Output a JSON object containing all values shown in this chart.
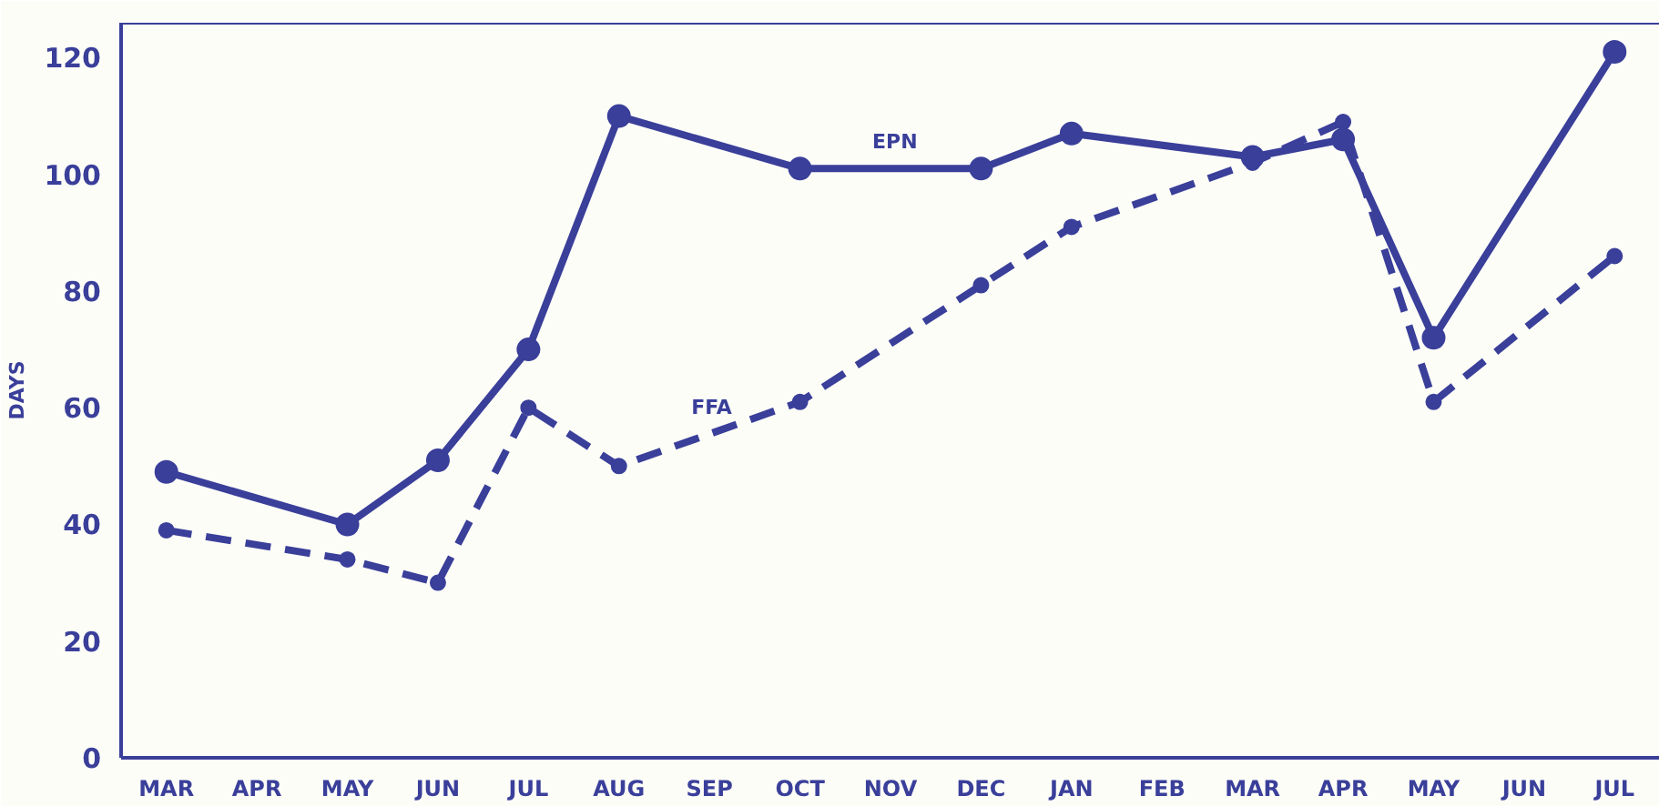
{
  "chart_data": {
    "type": "line",
    "ylabel": "DAYS",
    "categories": [
      "MAR",
      "APR",
      "MAY",
      "JUN",
      "JUL",
      "AUG",
      "SEP",
      "OCT",
      "NOV",
      "DEC",
      "JAN",
      "FEB",
      "MAR",
      "APR",
      "MAY",
      "JUN",
      "JUL"
    ],
    "ylim": [
      0,
      126
    ],
    "yticks": [
      0,
      20,
      40,
      60,
      80,
      100,
      120
    ],
    "marker": "circle",
    "series": [
      {
        "name": "EPN",
        "color": "#3a3f9a",
        "line_style": "solid",
        "values": [
          49,
          null,
          40,
          51,
          70,
          110,
          null,
          101,
          null,
          101,
          107,
          null,
          103,
          106,
          72,
          null,
          121
        ]
      },
      {
        "name": "FFA",
        "color": "#3a3f9a",
        "line_style": "dashed",
        "values": [
          39,
          null,
          34,
          30,
          60,
          50,
          null,
          61,
          null,
          81,
          91,
          null,
          102,
          109,
          61,
          null,
          86
        ]
      }
    ]
  }
}
